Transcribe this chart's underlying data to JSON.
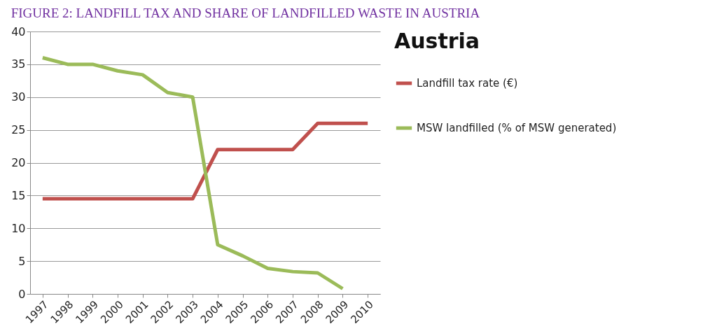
{
  "chart_data": {
    "type": "line",
    "title": "FIGURE 2: LANDFILL TAX AND SHARE OF LANDFILLED WASTE IN AUSTRIA",
    "legend_title": "Austria",
    "categories": [
      "1997",
      "1998",
      "1999",
      "2000",
      "2001",
      "2002",
      "2003",
      "2004",
      "2005",
      "2006",
      "2007",
      "2008",
      "2009",
      "2010"
    ],
    "series": [
      {
        "name": "Landfill tax rate (€)",
        "color": "#c0504d",
        "values": [
          14.5,
          14.5,
          14.5,
          14.5,
          14.5,
          14.5,
          14.5,
          22,
          22,
          22,
          22,
          26,
          26,
          26
        ]
      },
      {
        "name": "MSW landfilled (% of MSW generated)",
        "color": "#9bbb59",
        "values": [
          36,
          35,
          35,
          34,
          33.4,
          30.7,
          30,
          7.5,
          5.8,
          3.9,
          3.4,
          3.2,
          0.8,
          null
        ]
      }
    ],
    "ylim": [
      0,
      40
    ],
    "yticks": [
      0,
      5,
      10,
      15,
      20,
      25,
      30,
      35,
      40
    ],
    "grid": "y",
    "legend": "right",
    "marker": "none",
    "line_style": "solid"
  }
}
